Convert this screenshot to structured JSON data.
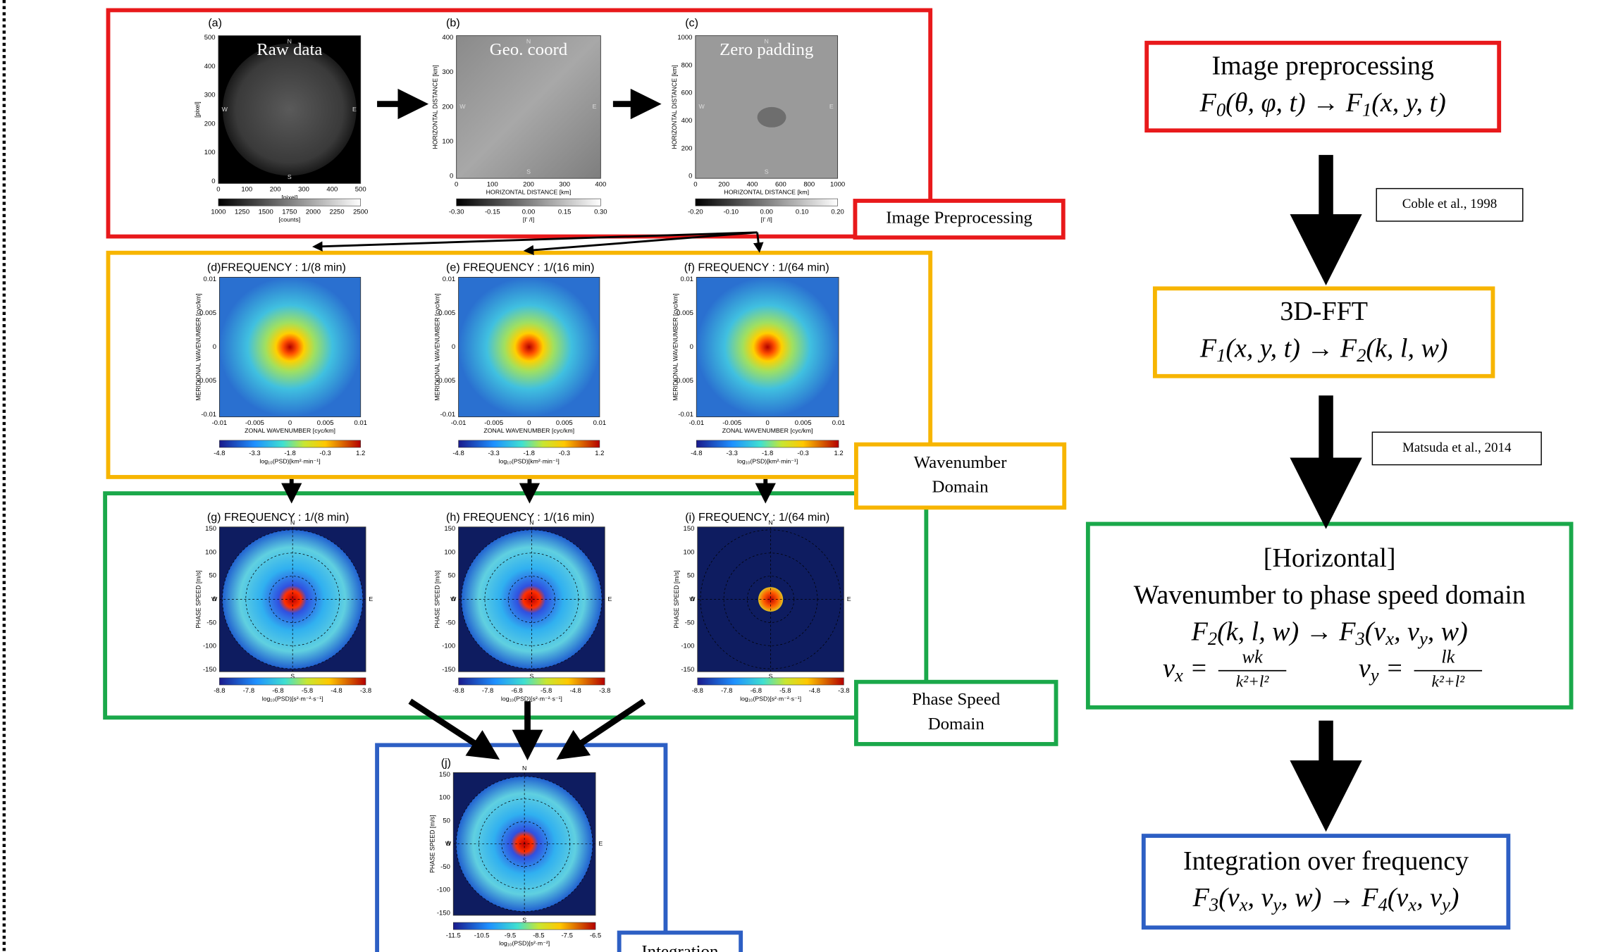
{
  "panels": [
    {
      "letter": "(a)",
      "label": "Raw data",
      "yticks": [
        "500",
        "400",
        "300",
        "200",
        "100",
        "0"
      ],
      "xticks": [
        "0",
        "100",
        "200",
        "300",
        "400",
        "500"
      ],
      "ylabel": "[pixel]",
      "xlabel": "[pixel]",
      "cbticks": [
        "1000",
        "1250",
        "1500",
        "1750",
        "2000",
        "2250",
        "2500"
      ],
      "cblabel": "[counts]",
      "compass": [
        "N",
        "E",
        "S",
        "W"
      ]
    },
    {
      "letter": "(b)",
      "label": "Geo. coord",
      "yticks": [
        "400",
        "300",
        "200",
        "100",
        "0"
      ],
      "xticks": [
        "0",
        "100",
        "200",
        "300",
        "400"
      ],
      "ylabel": "HORIZONTAL DISTANCE [km]",
      "xlabel": "HORIZONTAL DISTANCE [km]",
      "cbticks": [
        "-0.30",
        "-0.15",
        "0.00",
        "0.15",
        "0.30"
      ],
      "cblabel": "[I' /I]",
      "compass": [
        "N",
        "E",
        "S",
        "W"
      ]
    },
    {
      "letter": "(c)",
      "label": "Zero padding",
      "yticks": [
        "1000",
        "800",
        "600",
        "400",
        "200",
        "0"
      ],
      "xticks": [
        "0",
        "200",
        "400",
        "600",
        "800",
        "1000"
      ],
      "ylabel": "HORIZONTAL DISTANCE [km]",
      "xlabel": "HORIZONTAL DISTANCE [km]",
      "cbticks": [
        "-0.20",
        "-0.10",
        "0.00",
        "0.10",
        "0.20"
      ],
      "cblabel": "[I' /I]",
      "compass": [
        "N",
        "E",
        "S",
        "W"
      ]
    },
    {
      "letter": "(d)FREQUENCY : 1/(8 min)",
      "yticks": [
        "0.01",
        "0.005",
        "0",
        "-0.005",
        "-0.01"
      ],
      "xticks": [
        "-0.01",
        "-0.005",
        "0",
        "0.005",
        "0.01"
      ],
      "ylabel": "MERIDIONAL WAVENUMBER [cyc/km]",
      "xlabel": "ZONAL WAVENUMBER [cyc/km]",
      "cbticks": [
        "-4.8",
        "-3.3",
        "-1.8",
        "-0.3",
        "1.2"
      ],
      "cblabel": "log₁₀(PSD)[km²·min⁻¹]"
    },
    {
      "letter": "(e) FREQUENCY : 1/(16 min)",
      "yticks": [
        "0.01",
        "0.005",
        "0",
        "-0.005",
        "-0.01"
      ],
      "xticks": [
        "-0.01",
        "-0.005",
        "0",
        "0.005",
        "0.01"
      ],
      "ylabel": "MERIDIONAL WAVENUMBER [cyc/km]",
      "xlabel": "ZONAL WAVENUMBER [cyc/km]",
      "cbticks": [
        "-4.8",
        "-3.3",
        "-1.8",
        "-0.3",
        "1.2"
      ],
      "cblabel": "log₁₀(PSD)[km²·min⁻¹]"
    },
    {
      "letter": "(f)  FREQUENCY : 1/(64 min)",
      "yticks": [
        "0.01",
        "0.005",
        "0",
        "-0.005",
        "-0.01"
      ],
      "xticks": [
        "-0.01",
        "-0.005",
        "0",
        "0.005",
        "0.01"
      ],
      "ylabel": "MERIDIONAL WAVENUMBER [cyc/km]",
      "xlabel": "ZONAL WAVENUMBER [cyc/km]",
      "cbticks": [
        "-4.8",
        "-3.3",
        "-1.8",
        "-0.3",
        "1.2"
      ],
      "cblabel": "log₁₀(PSD)[km²·min⁻¹]"
    },
    {
      "letter": "(g) FREQUENCY : 1/(8 min)",
      "yticks": [
        "150",
        "100",
        "50",
        "0",
        "-50",
        "-100",
        "-150"
      ],
      "ylabel": "PHASE SPEED [m/s]",
      "cbticks": [
        "-8.8",
        "-7.8",
        "-6.8",
        "-5.8",
        "-4.8",
        "-3.8"
      ],
      "cblabel": "log₁₀(PSD)[s²·m⁻²·s⁻¹]",
      "compass": [
        "N",
        "E",
        "S",
        "W"
      ]
    },
    {
      "letter": "(h) FREQUENCY : 1/(16 min)",
      "yticks": [
        "150",
        "100",
        "50",
        "0",
        "-50",
        "-100",
        "-150"
      ],
      "ylabel": "PHASE SPEED [m/s]",
      "cbticks": [
        "-8.8",
        "-7.8",
        "-6.8",
        "-5.8",
        "-4.8",
        "-3.8"
      ],
      "cblabel": "log₁₀(PSD)[s²·m⁻²·s⁻¹]",
      "compass": [
        "N",
        "E",
        "S",
        "W"
      ]
    },
    {
      "letter": "(i) FREQUENCY : 1/(64 min)",
      "yticks": [
        "150",
        "100",
        "50",
        "0",
        "-50",
        "-100",
        "-150"
      ],
      "ylabel": "PHASE SPEED [m/s]",
      "cbticks": [
        "-8.8",
        "-7.8",
        "-6.8",
        "-5.8",
        "-4.8",
        "-3.8"
      ],
      "cblabel": "log₁₀(PSD)[s²·m⁻²·s⁻¹]",
      "compass": [
        "N",
        "E",
        "S",
        "W"
      ]
    },
    {
      "letter": "(j)",
      "yticks": [
        "150",
        "100",
        "50",
        "0",
        "-50",
        "-100",
        "-150"
      ],
      "ylabel": "PHASE SPEED [m/s]",
      "cbticks": [
        "-11.5",
        "-10.5",
        "-9.5",
        "-8.5",
        "-7.5",
        "-6.5"
      ],
      "cblabel": "log₁₀(PSD)[s²·m⁻²]",
      "compass": [
        "N",
        "E",
        "S",
        "W"
      ]
    }
  ],
  "stages": {
    "preprocessing": [
      "Image Preprocessing"
    ],
    "wavenumber": [
      "Wavenumber",
      "Domain"
    ],
    "phase_speed": [
      "Phase Speed",
      "Domain"
    ],
    "integration": [
      "Integration"
    ]
  },
  "flow": {
    "boxes": [
      {
        "title": [
          "Image preprocessing"
        ],
        "formula": [
          "F",
          "0",
          "(θ, φ, t)  →  F",
          "1",
          "(x, y, t)"
        ]
      },
      {
        "title": [
          "3D-FFT"
        ],
        "formula": [
          "F",
          "1",
          "(x, y, t) → F",
          "2",
          "(k, l, w)"
        ]
      },
      {
        "title": [
          "[Horizontal]",
          "Wavenumber to phase speed domain"
        ],
        "formula": [
          "F",
          "2",
          "(k, l, w) → F",
          "3",
          "(v",
          "x",
          ", v",
          "y",
          ", w)"
        ],
        "equations": [
          {
            "lhs": [
              "v",
              "x",
              " ="
            ],
            "num": "wk",
            "den": "k²+l²"
          },
          {
            "lhs": [
              "v",
              "y",
              " ="
            ],
            "num": "lk",
            "den": "k²+l²"
          }
        ]
      },
      {
        "title": [
          "Integration over frequency"
        ],
        "formula": [
          "F",
          "3",
          "(v",
          "x",
          ", v",
          "y",
          ", w) → F",
          "4",
          "(v",
          "x",
          ", v",
          "y",
          ")"
        ]
      }
    ],
    "citations": [
      "Coble et al., 1998",
      "Matsuda et al., 2014"
    ]
  }
}
